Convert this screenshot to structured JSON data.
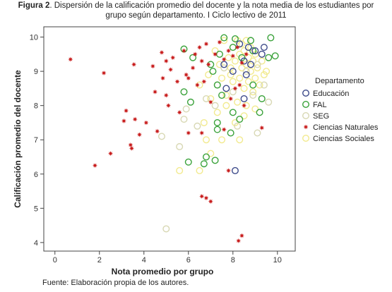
{
  "figure": {
    "label": "Figura 2",
    "caption_line1": ". Dispersión de la calificación promedio del docente y la nota media de los estudiantes por",
    "caption_line2": "grupo según departamento. I Ciclo lectivo de 2011",
    "source": "Fuente: Elaboración propia de los autores."
  },
  "chart_data": {
    "type": "scatter",
    "xlabel": "Nota promedio por grupo",
    "ylabel": "Calificación promedio del docente",
    "xlim": [
      -0.5,
      10.8
    ],
    "ylim": [
      3.75,
      10.3
    ],
    "xticks": [
      0,
      2,
      4,
      6,
      8,
      10
    ],
    "yticks": [
      4,
      5,
      6,
      7,
      8,
      9,
      10
    ],
    "grid": false,
    "legend_title": "Departamento",
    "legend_position": "right",
    "series": [
      {
        "name": "Educación",
        "marker": "circle-open",
        "color": "#3d4a8a",
        "points": [
          [
            8.3,
            9.8
          ],
          [
            8.7,
            9.7
          ],
          [
            9.0,
            9.6
          ],
          [
            9.3,
            9.5
          ],
          [
            8.5,
            9.3
          ],
          [
            8.0,
            9.0
          ],
          [
            8.6,
            8.9
          ],
          [
            7.7,
            8.5
          ],
          [
            8.5,
            8.2
          ],
          [
            9.4,
            9.7
          ],
          [
            7.6,
            9.2
          ],
          [
            8.8,
            9.2
          ],
          [
            8.1,
            6.1
          ]
        ]
      },
      {
        "name": "FAL",
        "marker": "circle-open",
        "color": "#3aa23a",
        "points": [
          [
            7.6,
            9.98
          ],
          [
            8.1,
            9.95
          ],
          [
            9.7,
            9.98
          ],
          [
            9.9,
            9.45
          ],
          [
            9.6,
            9.4
          ],
          [
            8.9,
            9.6
          ],
          [
            5.8,
            9.65
          ],
          [
            6.2,
            9.4
          ],
          [
            7.0,
            9.2
          ],
          [
            8.0,
            9.7
          ],
          [
            8.8,
            9.9
          ],
          [
            7.1,
            9.0
          ],
          [
            7.3,
            8.6
          ],
          [
            7.5,
            8.3
          ],
          [
            8.9,
            8.6
          ],
          [
            9.3,
            8.2
          ],
          [
            9.2,
            7.8
          ],
          [
            8.0,
            7.8
          ],
          [
            7.3,
            7.5
          ],
          [
            8.3,
            7.6
          ],
          [
            7.9,
            7.2
          ],
          [
            6.1,
            8.1
          ],
          [
            5.8,
            8.4
          ],
          [
            7.3,
            7.3
          ],
          [
            6.8,
            6.5
          ],
          [
            7.2,
            6.4
          ],
          [
            6.7,
            6.3
          ],
          [
            6.0,
            6.35
          ],
          [
            7.4,
            9.5
          ],
          [
            8.4,
            9.4
          ]
        ]
      },
      {
        "name": "SEG",
        "marker": "circle-open",
        "color": "#d8d8b4",
        "points": [
          [
            5.0,
            4.4
          ],
          [
            4.8,
            7.1
          ],
          [
            5.6,
            6.8
          ],
          [
            5.8,
            7.6
          ],
          [
            6.4,
            7.4
          ],
          [
            7.3,
            8.6
          ],
          [
            8.0,
            8.4
          ],
          [
            8.9,
            8.3
          ],
          [
            9.4,
            8.6
          ],
          [
            9.6,
            8.1
          ],
          [
            7.2,
            8.0
          ],
          [
            8.6,
            9.0
          ],
          [
            9.1,
            9.2
          ],
          [
            7.6,
            9.1
          ],
          [
            6.8,
            8.2
          ],
          [
            8.2,
            7.4
          ],
          [
            9.1,
            7.2
          ],
          [
            5.9,
            7.9
          ]
        ]
      },
      {
        "name": "Ciencias Naturales",
        "marker": "star",
        "color": "#c81e1e",
        "points": [
          [
            0.7,
            9.35
          ],
          [
            2.2,
            8.95
          ],
          [
            2.5,
            6.6
          ],
          [
            1.8,
            6.25
          ],
          [
            3.1,
            7.55
          ],
          [
            3.2,
            7.85
          ],
          [
            3.4,
            6.85
          ],
          [
            3.45,
            6.75
          ],
          [
            3.6,
            7.6
          ],
          [
            3.8,
            7.15
          ],
          [
            4.1,
            7.5
          ],
          [
            4.4,
            9.15
          ],
          [
            4.5,
            8.4
          ],
          [
            4.6,
            7.25
          ],
          [
            4.8,
            9.55
          ],
          [
            4.85,
            8.8
          ],
          [
            5.0,
            9.3
          ],
          [
            5.0,
            8.3
          ],
          [
            5.1,
            8.0
          ],
          [
            5.2,
            9.05
          ],
          [
            5.3,
            9.4
          ],
          [
            5.5,
            8.7
          ],
          [
            5.6,
            7.8
          ],
          [
            5.8,
            9.6
          ],
          [
            5.9,
            8.9
          ],
          [
            6.0,
            8.8
          ],
          [
            6.0,
            7.2
          ],
          [
            6.2,
            9.1
          ],
          [
            6.3,
            9.5
          ],
          [
            6.4,
            8.6
          ],
          [
            6.5,
            9.7
          ],
          [
            6.6,
            9.3
          ],
          [
            6.7,
            8.7
          ],
          [
            6.8,
            9.8
          ],
          [
            6.9,
            9.2
          ],
          [
            6.6,
            7.2
          ],
          [
            6.6,
            5.35
          ],
          [
            6.8,
            5.3
          ],
          [
            7.0,
            5.2
          ],
          [
            7.2,
            9.5
          ],
          [
            7.4,
            9.85
          ],
          [
            7.6,
            9.35
          ],
          [
            7.8,
            9.6
          ],
          [
            8.0,
            9.45
          ],
          [
            8.2,
            9.7
          ],
          [
            8.4,
            9.25
          ],
          [
            8.6,
            9.5
          ],
          [
            8.3,
            8.6
          ],
          [
            8.5,
            8.0
          ],
          [
            7.9,
            8.2
          ],
          [
            7.6,
            7.3
          ],
          [
            7.8,
            6.1
          ],
          [
            8.1,
            8.5
          ],
          [
            9.3,
            7.35
          ],
          [
            8.25,
            4.05
          ],
          [
            8.4,
            4.2
          ],
          [
            7.0,
            8.1
          ],
          [
            3.55,
            9.2
          ]
        ]
      },
      {
        "name": "Ciencias Sociales",
        "marker": "circle-open",
        "color": "#f2ea8e",
        "points": [
          [
            5.6,
            6.1
          ],
          [
            6.5,
            8.6
          ],
          [
            6.9,
            8.9
          ],
          [
            7.0,
            8.2
          ],
          [
            7.2,
            9.6
          ],
          [
            7.4,
            9.2
          ],
          [
            7.5,
            8.8
          ],
          [
            7.6,
            9.9
          ],
          [
            7.7,
            8.3
          ],
          [
            7.8,
            9.4
          ],
          [
            7.9,
            8.9
          ],
          [
            8.0,
            9.7
          ],
          [
            8.0,
            8.7
          ],
          [
            8.1,
            9.3
          ],
          [
            8.2,
            9.9
          ],
          [
            8.2,
            8.1
          ],
          [
            8.3,
            9.5
          ],
          [
            8.3,
            8.8
          ],
          [
            8.4,
            9.1
          ],
          [
            8.4,
            9.8
          ],
          [
            8.5,
            8.5
          ],
          [
            8.5,
            9.6
          ],
          [
            8.6,
            9.2
          ],
          [
            8.6,
            8.0
          ],
          [
            8.7,
            9.4
          ],
          [
            8.7,
            8.7
          ],
          [
            8.8,
            9.7
          ],
          [
            8.8,
            9.0
          ],
          [
            8.9,
            8.4
          ],
          [
            8.9,
            9.3
          ],
          [
            9.0,
            8.8
          ],
          [
            9.0,
            9.5
          ],
          [
            9.1,
            9.1
          ],
          [
            9.2,
            8.6
          ],
          [
            9.3,
            9.3
          ],
          [
            9.4,
            8.9
          ],
          [
            9.5,
            9.0
          ],
          [
            8.1,
            7.5
          ],
          [
            7.3,
            7.8
          ],
          [
            6.8,
            7.0
          ],
          [
            6.5,
            6.1
          ],
          [
            7.0,
            6.6
          ],
          [
            7.5,
            7.0
          ],
          [
            8.5,
            7.7
          ],
          [
            9.0,
            7.9
          ],
          [
            8.3,
            7.0
          ],
          [
            7.7,
            8.0
          ],
          [
            6.7,
            7.5
          ],
          [
            7.9,
            9.1
          ],
          [
            8.6,
            9.9
          ]
        ]
      }
    ]
  }
}
